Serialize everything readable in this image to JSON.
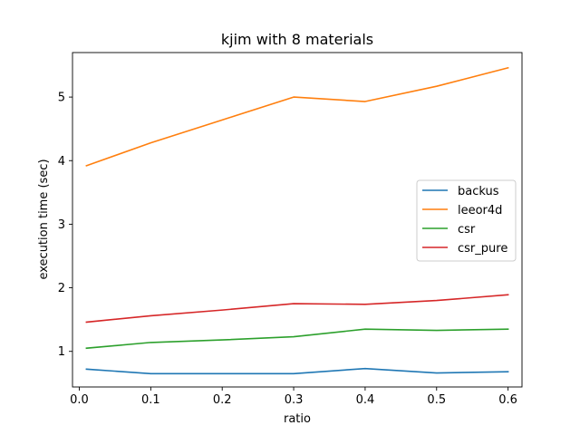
{
  "chart_data": {
    "type": "line",
    "title": "kjim with 8 materials",
    "xlabel": "ratio",
    "ylabel": "execution time (sec)",
    "x": [
      0.01,
      0.1,
      0.2,
      0.3,
      0.4,
      0.5,
      0.6
    ],
    "xlim": [
      -0.0095,
      0.6195
    ],
    "ylim": [
      0.44,
      5.7
    ],
    "xticks": [
      0.0,
      0.1,
      0.2,
      0.3,
      0.4,
      0.5,
      0.6
    ],
    "xtick_labels": [
      "0.0",
      "0.1",
      "0.2",
      "0.3",
      "0.4",
      "0.5",
      "0.6"
    ],
    "yticks": [
      1,
      2,
      3,
      4,
      5
    ],
    "ytick_labels": [
      "1",
      "2",
      "3",
      "4",
      "5"
    ],
    "grid": false,
    "legend_position": "center-right",
    "series": [
      {
        "name": "backus",
        "color": "#1f77b4",
        "values": [
          0.72,
          0.65,
          0.65,
          0.65,
          0.73,
          0.66,
          0.68
        ]
      },
      {
        "name": "leeor4d",
        "color": "#ff7f0e",
        "values": [
          3.92,
          4.28,
          4.64,
          5.0,
          4.93,
          5.17,
          5.46
        ]
      },
      {
        "name": "csr",
        "color": "#2ca02c",
        "values": [
          1.05,
          1.14,
          1.18,
          1.23,
          1.35,
          1.33,
          1.35
        ]
      },
      {
        "name": "csr_pure",
        "color": "#d62728",
        "values": [
          1.46,
          1.56,
          1.65,
          1.75,
          1.74,
          1.8,
          1.89
        ]
      }
    ]
  }
}
